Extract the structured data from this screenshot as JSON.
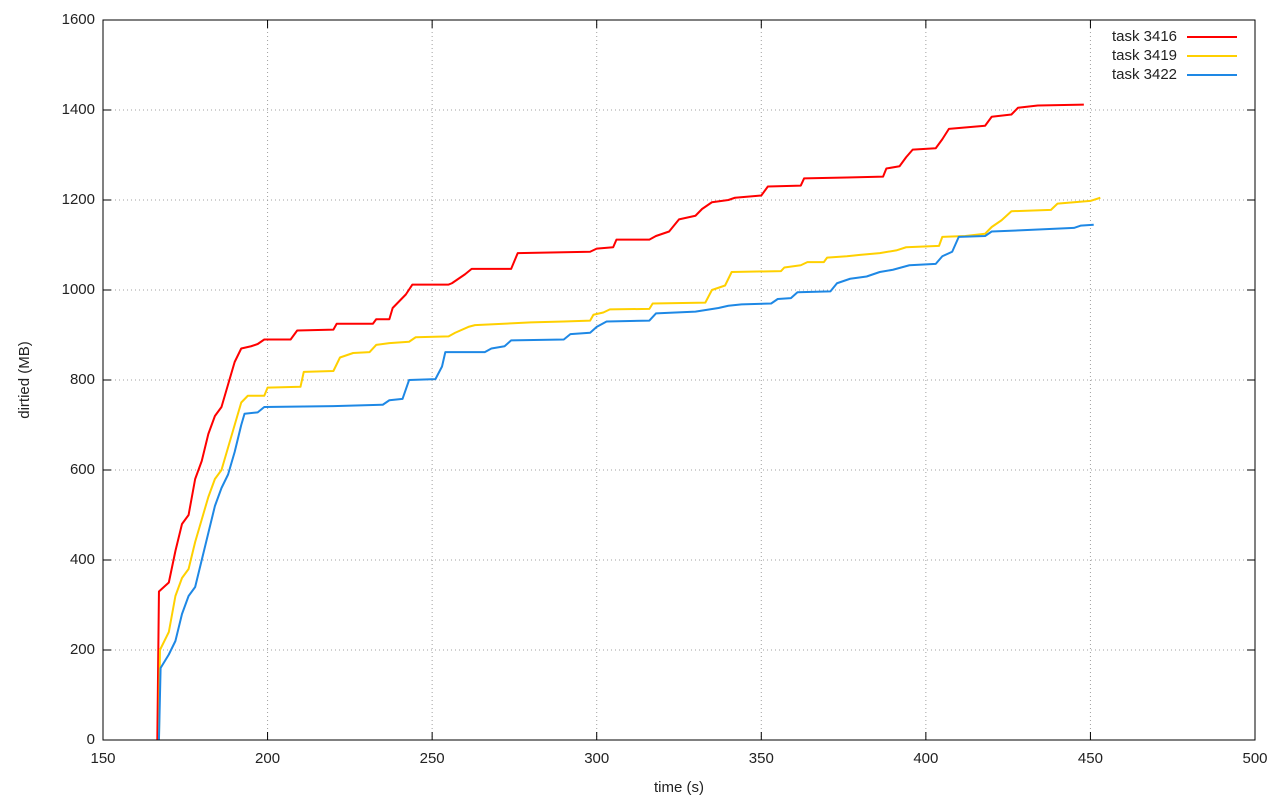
{
  "chart_data": {
    "type": "line",
    "x_label": "time (s)",
    "y_label": "dirtied (MB)",
    "xlim": [
      150,
      500
    ],
    "ylim": [
      0,
      1600
    ],
    "xticks": [
      150,
      200,
      250,
      300,
      350,
      400,
      450,
      500
    ],
    "yticks": [
      0,
      200,
      400,
      600,
      800,
      1000,
      1200,
      1400,
      1600
    ],
    "grid": true,
    "legend": "top-right",
    "series": [
      {
        "name": "task 3416",
        "color": "#ff0000",
        "x": [
          166.5,
          167,
          170,
          172,
          174,
          176,
          178,
          180,
          182,
          184,
          186,
          188,
          190,
          192,
          195,
          197,
          199,
          207,
          209,
          220,
          221,
          232,
          233,
          237,
          238,
          240,
          242,
          244,
          255,
          256,
          260,
          262,
          274,
          276,
          298,
          300,
          305,
          306,
          316,
          318,
          322,
          325,
          330,
          332,
          335,
          340,
          342,
          350,
          352,
          362,
          363,
          376,
          387,
          388,
          392,
          394,
          396,
          403,
          405,
          407,
          418,
          420,
          426,
          428,
          434,
          448
        ],
        "values": [
          0,
          330,
          350,
          420,
          480,
          500,
          580,
          620,
          680,
          720,
          740,
          790,
          840,
          870,
          875,
          880,
          890,
          890,
          910,
          912,
          925,
          925,
          935,
          935,
          960,
          975,
          990,
          1012,
          1012,
          1015,
          1035,
          1047,
          1047,
          1082,
          1085,
          1092,
          1095,
          1112,
          1112,
          1120,
          1130,
          1157,
          1165,
          1180,
          1195,
          1200,
          1205,
          1210,
          1230,
          1232,
          1248,
          1250,
          1252,
          1270,
          1275,
          1295,
          1312,
          1315,
          1335,
          1358,
          1365,
          1385,
          1390,
          1405,
          1410,
          1412
        ]
      },
      {
        "name": "task 3419",
        "color": "#ffd000",
        "x": [
          167,
          167.3,
          170,
          172,
          174,
          176,
          178,
          180,
          182,
          184,
          186,
          188,
          190,
          192,
          194,
          199,
          200,
          210,
          211,
          220,
          222,
          226,
          231,
          233,
          237,
          243,
          245,
          255,
          257,
          261,
          263,
          280,
          290,
          298,
          299,
          302,
          304,
          316,
          317,
          333,
          335,
          339,
          341,
          356,
          357,
          362,
          364,
          369,
          370,
          376,
          380,
          386,
          391,
          394,
          404,
          405,
          412,
          418,
          420,
          423,
          426,
          438,
          440,
          450,
          453
        ],
        "values": [
          0,
          200,
          240,
          320,
          360,
          380,
          440,
          490,
          540,
          580,
          600,
          650,
          700,
          750,
          765,
          765,
          783,
          785,
          818,
          820,
          850,
          860,
          862,
          878,
          882,
          885,
          895,
          897,
          905,
          918,
          922,
          928,
          930,
          932,
          945,
          950,
          957,
          958,
          970,
          972,
          1000,
          1010,
          1040,
          1042,
          1050,
          1055,
          1062,
          1062,
          1072,
          1075,
          1078,
          1082,
          1088,
          1095,
          1098,
          1118,
          1120,
          1125,
          1140,
          1155,
          1175,
          1178,
          1192,
          1198,
          1205
        ]
      },
      {
        "name": "task 3422",
        "color": "#1e88e5",
        "x": [
          167,
          167.5,
          170,
          172,
          174,
          176,
          178,
          180,
          182,
          184,
          186,
          188,
          190,
          192,
          193,
          197,
          199,
          220,
          235,
          237,
          241,
          243,
          251,
          253,
          254,
          266,
          268,
          272,
          274,
          290,
          292,
          298,
          300,
          303,
          316,
          318,
          330,
          337,
          340,
          344,
          353,
          355,
          359,
          361,
          371,
          373,
          377,
          382,
          386,
          390,
          395,
          403,
          405,
          408,
          410,
          418,
          420,
          430,
          445,
          447,
          451
        ],
        "values": [
          0,
          160,
          190,
          220,
          280,
          320,
          340,
          400,
          460,
          520,
          560,
          590,
          640,
          700,
          725,
          728,
          740,
          742,
          745,
          755,
          758,
          800,
          802,
          830,
          862,
          862,
          870,
          875,
          888,
          890,
          902,
          905,
          918,
          930,
          932,
          948,
          952,
          960,
          965,
          968,
          970,
          980,
          982,
          995,
          997,
          1015,
          1025,
          1030,
          1040,
          1045,
          1055,
          1058,
          1075,
          1085,
          1118,
          1120,
          1130,
          1133,
          1138,
          1143,
          1145
        ]
      }
    ]
  }
}
